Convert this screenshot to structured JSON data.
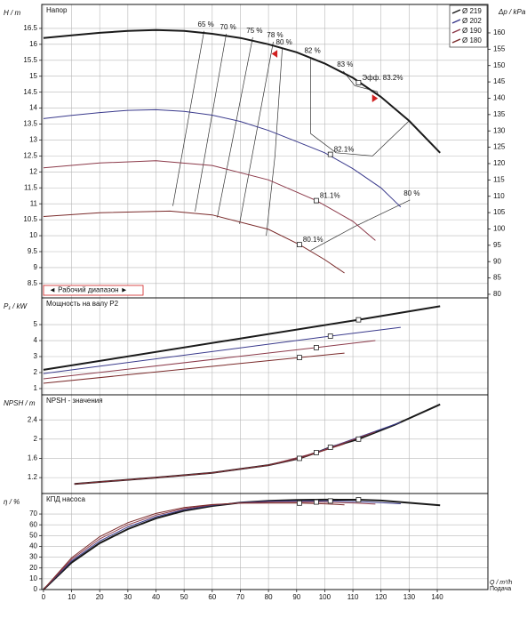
{
  "chart_data": [
    {
      "type": "line",
      "title": "Напор",
      "ylabel": "H / m",
      "y2label": "Δp / kPa",
      "xlim": [
        -0.6,
        158
      ],
      "ylim": [
        8.05,
        17.25
      ],
      "yticks": [
        8.5,
        9,
        9.5,
        10,
        10.5,
        11,
        11.5,
        12,
        12.5,
        13,
        13.5,
        14,
        14.5,
        15,
        15.5,
        16,
        16.5
      ],
      "y2lim": [
        78.9,
        168.7
      ],
      "y2ticks": [
        80,
        85,
        90,
        95,
        100,
        105,
        110,
        115,
        120,
        125,
        130,
        135,
        140,
        145,
        150,
        155,
        160
      ],
      "grid": true,
      "legend": "top-right",
      "series": [
        {
          "name": "Ø 219",
          "color": "#1a1a1a",
          "x": [
            0,
            10,
            20,
            30,
            40,
            50,
            60,
            70,
            80,
            90,
            100,
            110,
            120,
            130,
            141
          ],
          "values": [
            16.2,
            16.28,
            16.36,
            16.42,
            16.45,
            16.42,
            16.33,
            16.2,
            16.0,
            15.75,
            15.4,
            14.95,
            14.35,
            13.6,
            12.6
          ],
          "bep_x": 112,
          "bep_y": 14.8,
          "bep_label": "Эфф.  83.2%"
        },
        {
          "name": "Ø 202",
          "color": "#3a3a8c",
          "x": [
            0,
            10,
            20,
            30,
            40,
            50,
            60,
            70,
            80,
            90,
            100,
            110,
            120,
            127
          ],
          "values": [
            13.67,
            13.77,
            13.86,
            13.93,
            13.95,
            13.9,
            13.78,
            13.58,
            13.3,
            12.95,
            12.6,
            12.1,
            11.5,
            10.9
          ],
          "bep_x": 102,
          "bep_y": 12.55,
          "bep_label": "82.1%"
        },
        {
          "name": "Ø 190",
          "color": "#8c3a4a",
          "x": [
            0,
            20,
            40,
            60,
            80,
            97,
            110,
            118
          ],
          "values": [
            12.13,
            12.28,
            12.35,
            12.2,
            11.75,
            11.1,
            10.45,
            9.85
          ],
          "bep_x": 97,
          "bep_y": 11.1,
          "bep_label": "81.1%"
        },
        {
          "name": "Ø 180",
          "color": "#7a2a2a",
          "x": [
            0,
            20,
            45,
            60,
            80,
            91,
            100,
            107
          ],
          "values": [
            10.6,
            10.72,
            10.77,
            10.65,
            10.2,
            9.72,
            9.25,
            8.83
          ],
          "bep_x": 91,
          "bep_y": 9.72,
          "bep_label": "80.1%"
        }
      ],
      "isolines": [
        {
          "label": "65 %",
          "x": [
            57.1,
            46.0
          ],
          "values": [
            16.42,
            10.93
          ]
        },
        {
          "label": "70 %",
          "x": [
            65,
            53.9
          ],
          "values": [
            16.33,
            10.76
          ]
        },
        {
          "label": "75 %",
          "x": [
            74.4,
            61.8
          ],
          "values": [
            16.22,
            10.57
          ]
        },
        {
          "label": "78 %",
          "x": [
            81.7,
            69.7
          ],
          "values": [
            16.08,
            10.37
          ]
        },
        {
          "label": "80 %",
          "x": [
            84.9,
            82.3,
            79.2
          ],
          "values": [
            15.86,
            12.5,
            10.0
          ]
        },
        {
          "label": "82 %",
          "x": [
            95,
            95,
            104,
            117,
            130,
            131
          ],
          "values": [
            15.6,
            13.2,
            12.6,
            12.5,
            13.6,
            13.5
          ]
        },
        {
          "label": "83 %",
          "x": [
            106.6,
            110.7,
            118.6,
            119
          ],
          "values": [
            15.16,
            14.7,
            14.52,
            14.4
          ]
        },
        {
          "label": "80 %",
          "x": [
            130.3,
            110.7,
            95
          ],
          "values": [
            11.12,
            10.29,
            9.54
          ]
        }
      ],
      "operating_range": {
        "label": "◄ Рабочий диапазон ►",
        "x": [
          83,
          117
        ]
      }
    },
    {
      "type": "line",
      "title": "Мощность на валу P2",
      "ylabel": "P₁ / kW",
      "xlim": [
        -0.6,
        158
      ],
      "ylim": [
        0.61,
        6.67
      ],
      "yticks": [
        1,
        2,
        3,
        4,
        5
      ],
      "grid": true,
      "series": [
        {
          "color": "#1a1a1a",
          "x": [
            0,
            112,
            141
          ],
          "values": [
            2.17,
            5.3,
            6.15
          ],
          "bep_x": 112,
          "bep_y": 5.3
        },
        {
          "color": "#3a3a8c",
          "x": [
            0,
            102,
            127
          ],
          "values": [
            1.94,
            4.28,
            4.83
          ],
          "bep_x": 102,
          "bep_y": 4.28
        },
        {
          "color": "#8c3a4a",
          "x": [
            0,
            97,
            118
          ],
          "values": [
            1.61,
            3.56,
            4.0
          ],
          "bep_x": 97,
          "bep_y": 3.56
        },
        {
          "color": "#7a2a2a",
          "x": [
            0,
            91,
            107
          ],
          "values": [
            1.33,
            2.94,
            3.22
          ],
          "bep_x": 91,
          "bep_y": 2.94
        }
      ]
    },
    {
      "type": "line",
      "title": "NPSH - значения",
      "ylabel": "NPSH / m",
      "xlim": [
        -0.6,
        158
      ],
      "ylim": [
        0.87,
        2.92
      ],
      "yticks": [
        1.2,
        1.6,
        2,
        2.4
      ],
      "grid": true,
      "series": [
        {
          "color": "#1a1a1a",
          "x": [
            11,
            40,
            60,
            80,
            91,
            97,
            102,
            112,
            125,
            141
          ],
          "values": [
            1.07,
            1.2,
            1.3,
            1.46,
            1.6,
            1.72,
            1.83,
            2.0,
            2.3,
            2.72
          ],
          "bep_x": 112,
          "bep_y": 2.0
        },
        {
          "color": "#3a3a8c",
          "x": [
            11,
            40,
            60,
            80,
            91,
            102,
            127
          ],
          "values": [
            1.07,
            1.2,
            1.3,
            1.46,
            1.6,
            1.83,
            2.35
          ],
          "bep_x": 102,
          "bep_y": 1.83
        },
        {
          "color": "#8c3a4a",
          "x": [
            11,
            40,
            60,
            80,
            97,
            118
          ],
          "values": [
            1.07,
            1.2,
            1.3,
            1.46,
            1.72,
            2.15
          ],
          "bep_x": 97,
          "bep_y": 1.72
        },
        {
          "color": "#7a2a2a",
          "x": [
            11,
            40,
            60,
            80,
            91,
            107
          ],
          "values": [
            1.07,
            1.2,
            1.3,
            1.46,
            1.6,
            1.9
          ],
          "bep_x": 91,
          "bep_y": 1.6
        }
      ]
    },
    {
      "type": "line",
      "title": "КПД насоса",
      "ylabel": "η / %",
      "xlabel": "Q / m³/h",
      "xnote": "Подача",
      "xlim": [
        -0.6,
        158
      ],
      "ylim": [
        0,
        89
      ],
      "yticks": [
        0,
        10,
        20,
        30,
        40,
        50,
        60,
        70
      ],
      "xticks": [
        0,
        10,
        20,
        30,
        40,
        50,
        60,
        70,
        80,
        90,
        100,
        110,
        120,
        130,
        140
      ],
      "grid": true,
      "series": [
        {
          "color": "#1a1a1a",
          "x": [
            0,
            10,
            20,
            30,
            40,
            50,
            60,
            70,
            80,
            90,
            100,
            112,
            120,
            141
          ],
          "values": [
            0,
            25,
            43,
            56,
            66,
            73,
            77.5,
            80.5,
            82.2,
            83,
            83.3,
            83.2,
            82.5,
            78
          ],
          "bep_x": 112,
          "bep_y": 83.2
        },
        {
          "color": "#3a3a8c",
          "x": [
            0,
            10,
            20,
            30,
            40,
            50,
            60,
            70,
            80,
            90,
            102,
            115,
            127
          ],
          "values": [
            0,
            26.5,
            45,
            58,
            67.5,
            74,
            78,
            80.5,
            81.8,
            82.1,
            82.1,
            81.2,
            79.5
          ],
          "bep_x": 102,
          "bep_y": 82.1
        },
        {
          "color": "#8c3a4a",
          "x": [
            0,
            10,
            20,
            30,
            40,
            50,
            60,
            70,
            80,
            97,
            110,
            118
          ],
          "values": [
            0,
            28,
            47,
            60,
            69,
            75,
            78.5,
            80.3,
            81,
            81.1,
            80.3,
            79.2
          ],
          "bep_x": 97,
          "bep_y": 81.1
        },
        {
          "color": "#7a2a2a",
          "x": [
            0,
            10,
            20,
            30,
            40,
            50,
            60,
            70,
            80,
            91,
            100,
            107
          ],
          "values": [
            0,
            29.5,
            49,
            62,
            70.5,
            76,
            78.8,
            80,
            80.1,
            80.1,
            79.4,
            78.5
          ],
          "bep_x": 91,
          "bep_y": 80.1
        }
      ]
    }
  ]
}
